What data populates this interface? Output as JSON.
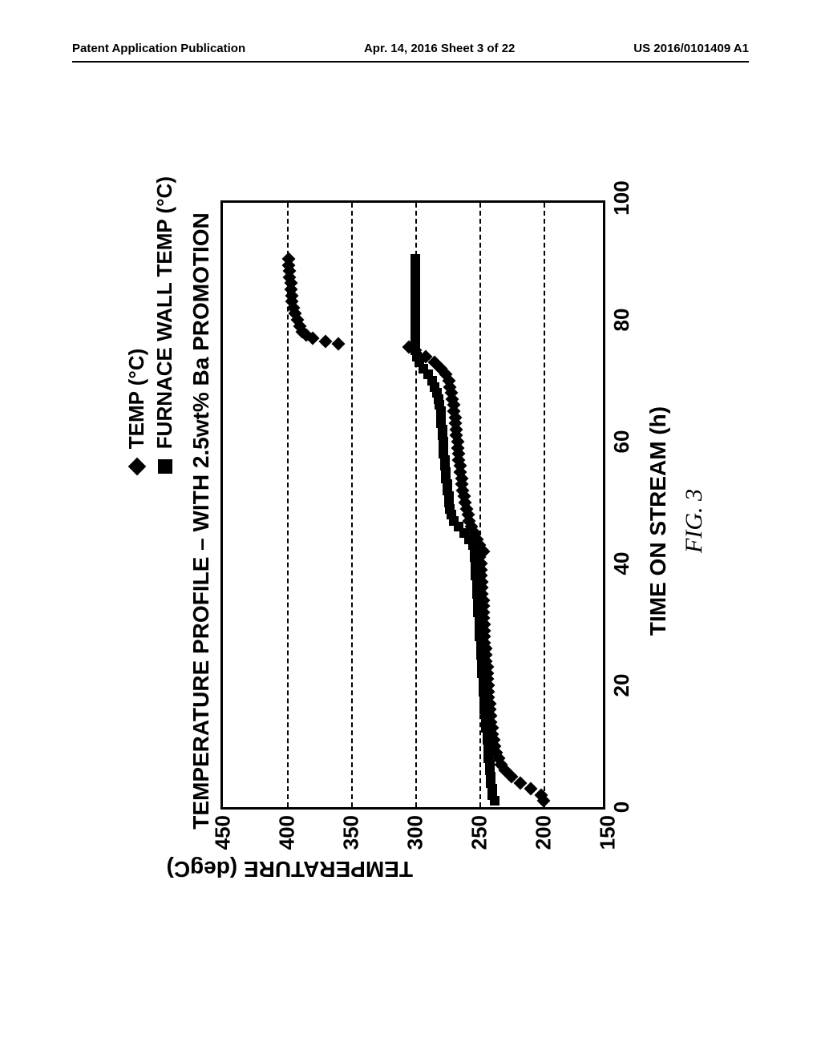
{
  "header": {
    "left": "Patent Application Publication",
    "center": "Apr. 14, 2016  Sheet 3 of 22",
    "right": "US 2016/0101409 A1"
  },
  "chart": {
    "type": "scatter",
    "title": "TEMPERATURE PROFILE – WITH 2.5wt% Ba PROMOTION",
    "xlabel": "TIME ON STREAM (h)",
    "ylabel": "TEMPERATURE (degC)",
    "fig_caption": "FIG. 3",
    "xlim": [
      0,
      100
    ],
    "ylim": [
      150,
      450
    ],
    "xtick_step": 20,
    "ytick_step": 50,
    "xticks": [
      0,
      20,
      40,
      60,
      80,
      100
    ],
    "yticks": [
      150,
      200,
      250,
      300,
      350,
      400,
      450
    ],
    "grid_y": true,
    "grid_style": "dashed",
    "grid_color": "#000000",
    "border_color": "#000000",
    "background_color": "#ffffff",
    "tick_fontsize": 26,
    "label_fontsize": 28,
    "title_fontsize": 28,
    "marker_size": 12,
    "legend": {
      "position": "top-right-outside",
      "fontsize": 26,
      "items": [
        {
          "marker": "diamond",
          "label": "TEMP (°C)"
        },
        {
          "marker": "square",
          "label": "FURNACE WALL TEMP (°C)"
        }
      ]
    },
    "series": [
      {
        "name": "TEMP (°C)",
        "marker": "diamond",
        "color": "#000000",
        "points": [
          [
            1,
            200
          ],
          [
            2,
            202
          ],
          [
            3,
            210
          ],
          [
            4,
            218
          ],
          [
            5,
            225
          ],
          [
            6,
            230
          ],
          [
            7,
            233
          ],
          [
            8,
            235
          ],
          [
            9,
            237
          ],
          [
            10,
            238
          ],
          [
            11,
            239
          ],
          [
            12,
            240
          ],
          [
            13,
            240
          ],
          [
            14,
            241
          ],
          [
            15,
            241
          ],
          [
            16,
            242
          ],
          [
            17,
            242
          ],
          [
            18,
            243
          ],
          [
            19,
            243
          ],
          [
            20,
            243
          ],
          [
            21,
            244
          ],
          [
            22,
            244
          ],
          [
            23,
            244
          ],
          [
            24,
            245
          ],
          [
            25,
            245
          ],
          [
            26,
            245
          ],
          [
            27,
            246
          ],
          [
            28,
            246
          ],
          [
            29,
            246
          ],
          [
            30,
            246
          ],
          [
            31,
            247
          ],
          [
            32,
            247
          ],
          [
            33,
            247
          ],
          [
            34,
            247
          ],
          [
            35,
            248
          ],
          [
            36,
            248
          ],
          [
            37,
            248
          ],
          [
            38,
            249
          ],
          [
            39,
            249
          ],
          [
            40,
            249
          ],
          [
            41,
            250
          ],
          [
            42,
            247
          ],
          [
            43,
            250
          ],
          [
            44,
            252
          ],
          [
            45,
            254
          ],
          [
            46,
            256
          ],
          [
            47,
            258
          ],
          [
            48,
            259
          ],
          [
            49,
            260
          ],
          [
            50,
            261
          ],
          [
            51,
            262
          ],
          [
            52,
            263
          ],
          [
            53,
            264
          ],
          [
            54,
            264
          ],
          [
            55,
            265
          ],
          [
            56,
            265
          ],
          [
            57,
            266
          ],
          [
            58,
            266
          ],
          [
            59,
            267
          ],
          [
            60,
            267
          ],
          [
            61,
            268
          ],
          [
            62,
            268
          ],
          [
            63,
            269
          ],
          [
            64,
            269
          ],
          [
            65,
            270
          ],
          [
            66,
            270
          ],
          [
            67,
            271
          ],
          [
            68,
            272
          ],
          [
            69,
            273
          ],
          [
            70,
            274
          ],
          [
            71,
            276
          ],
          [
            72,
            280
          ],
          [
            73,
            285
          ],
          [
            74,
            292
          ],
          [
            75,
            300
          ],
          [
            75.5,
            305
          ],
          [
            76,
            360
          ],
          [
            76.5,
            370
          ],
          [
            77,
            380
          ],
          [
            77.5,
            385
          ],
          [
            78,
            388
          ],
          [
            79,
            390
          ],
          [
            80,
            392
          ],
          [
            81,
            394
          ],
          [
            82,
            395
          ],
          [
            83,
            396
          ],
          [
            84,
            396
          ],
          [
            85,
            397
          ],
          [
            86,
            397
          ],
          [
            87,
            398
          ],
          [
            88,
            398
          ],
          [
            89,
            399
          ],
          [
            90,
            399
          ]
        ]
      },
      {
        "name": "FURNACE WALL TEMP (°C)",
        "marker": "square",
        "color": "#000000",
        "points": [
          [
            1,
            238
          ],
          [
            2,
            240
          ],
          [
            3,
            240
          ],
          [
            4,
            241
          ],
          [
            5,
            241
          ],
          [
            6,
            242
          ],
          [
            7,
            242
          ],
          [
            8,
            243
          ],
          [
            9,
            243
          ],
          [
            10,
            243
          ],
          [
            11,
            244
          ],
          [
            12,
            244
          ],
          [
            13,
            245
          ],
          [
            14,
            245
          ],
          [
            15,
            245
          ],
          [
            16,
            246
          ],
          [
            17,
            246
          ],
          [
            18,
            246
          ],
          [
            19,
            247
          ],
          [
            20,
            247
          ],
          [
            21,
            247
          ],
          [
            22,
            248
          ],
          [
            23,
            248
          ],
          [
            24,
            248
          ],
          [
            25,
            249
          ],
          [
            26,
            249
          ],
          [
            27,
            249
          ],
          [
            28,
            250
          ],
          [
            29,
            250
          ],
          [
            30,
            250
          ],
          [
            31,
            250
          ],
          [
            32,
            251
          ],
          [
            33,
            251
          ],
          [
            34,
            251
          ],
          [
            35,
            252
          ],
          [
            36,
            252
          ],
          [
            37,
            252
          ],
          [
            38,
            253
          ],
          [
            39,
            253
          ],
          [
            40,
            253
          ],
          [
            41,
            254
          ],
          [
            42,
            254
          ],
          [
            43,
            255
          ],
          [
            44,
            258
          ],
          [
            45,
            262
          ],
          [
            46,
            266
          ],
          [
            47,
            270
          ],
          [
            48,
            272
          ],
          [
            49,
            273
          ],
          [
            50,
            274
          ],
          [
            51,
            274
          ],
          [
            52,
            275
          ],
          [
            53,
            275
          ],
          [
            54,
            276
          ],
          [
            55,
            276
          ],
          [
            56,
            277
          ],
          [
            57,
            277
          ],
          [
            58,
            278
          ],
          [
            59,
            278
          ],
          [
            60,
            278
          ],
          [
            61,
            279
          ],
          [
            62,
            279
          ],
          [
            63,
            280
          ],
          [
            64,
            280
          ],
          [
            65,
            280
          ],
          [
            66,
            281
          ],
          [
            67,
            282
          ],
          [
            68,
            283
          ],
          [
            69,
            285
          ],
          [
            70,
            287
          ],
          [
            71,
            290
          ],
          [
            72,
            294
          ],
          [
            73,
            297
          ],
          [
            74,
            299
          ],
          [
            75,
            300
          ],
          [
            76,
            300
          ],
          [
            77,
            300
          ],
          [
            78,
            300
          ],
          [
            79,
            300
          ],
          [
            80,
            300
          ],
          [
            81,
            300
          ],
          [
            82,
            300
          ],
          [
            83,
            300
          ],
          [
            84,
            300
          ],
          [
            85,
            300
          ],
          [
            86,
            300
          ],
          [
            87,
            300
          ],
          [
            88,
            300
          ],
          [
            89,
            300
          ],
          [
            90,
            300
          ]
        ]
      }
    ]
  }
}
